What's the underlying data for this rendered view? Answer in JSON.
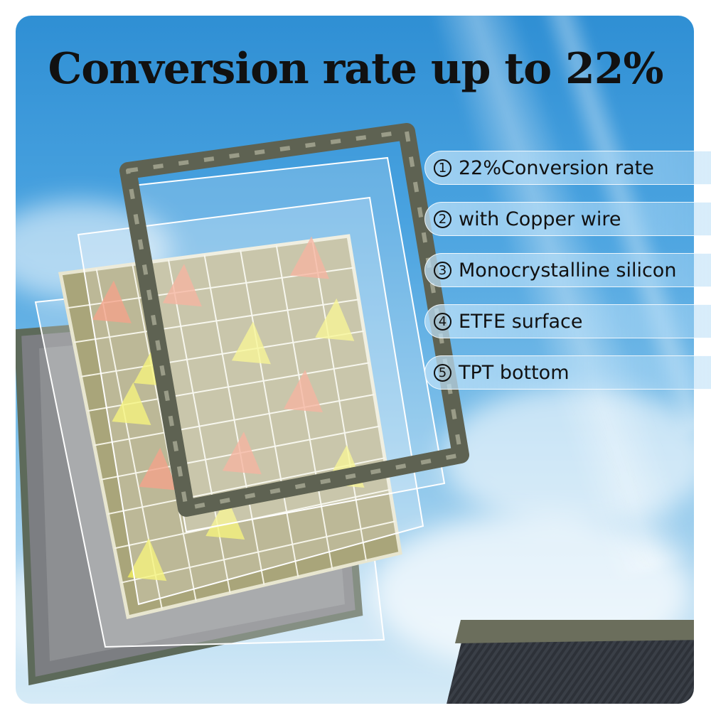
{
  "title": "Conversion rate up to 22%",
  "features": [
    {
      "num": "1",
      "label": "22%Conversion rate"
    },
    {
      "num": "2",
      "label": "with Copper wire"
    },
    {
      "num": "3",
      "label": "Monocrystalline silicon"
    },
    {
      "num": "4",
      "label": "ETFE surface"
    },
    {
      "num": "5",
      "label": "TPT bottom"
    }
  ],
  "colors": {
    "sky": "#4aa3e0",
    "frame": "#6b6e5c",
    "cells": "#a9a57a",
    "arrow_orange": "#f08a6a",
    "arrow_yellow": "#f3f05a",
    "back_panel": "#7d7f82"
  }
}
